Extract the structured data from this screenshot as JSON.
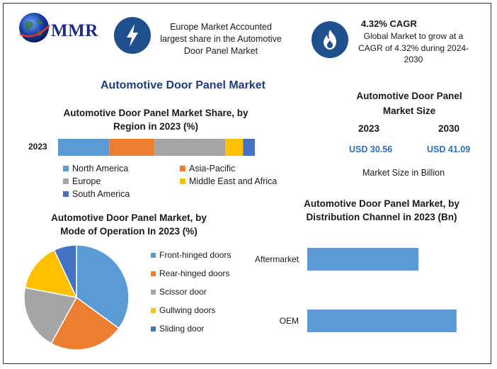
{
  "brand": {
    "name": "MMR"
  },
  "info1": {
    "line1": "Europe Market Accounted",
    "line2": "largest share in the Automotive",
    "line3": "Door Panel Market",
    "icon": "lightning-icon"
  },
  "info2": {
    "title": "4.32% CAGR",
    "line1": "Global Market to grow at a",
    "line2": "CAGR of 4.32% during 2024-",
    "line3": "2030",
    "icon": "flame-icon"
  },
  "main_title": "Automotive Door Panel Market",
  "size_panel": {
    "title_line1": "Automotive Door Panel",
    "title_line2": "Market Size",
    "year1": "2023",
    "year2": "2030",
    "value1": "USD 30.56",
    "value2": "USD 41.09",
    "note": "Market Size in Billion"
  },
  "chart_data": [
    {
      "type": "bar",
      "orientation": "horizontal-stacked",
      "title": "Automotive Door Panel Market Share, by Region in 2023 (%)",
      "title_line1": "Automotive Door Panel Market Share, by",
      "title_line2": "Region in 2023 (%)",
      "categories": [
        "2023"
      ],
      "series": [
        {
          "name": "North America",
          "values": [
            26
          ],
          "color": "#5b9bd5"
        },
        {
          "name": "Asia-Pacific",
          "values": [
            23
          ],
          "color": "#ed7d31"
        },
        {
          "name": "Europe",
          "values": [
            36
          ],
          "color": "#a5a5a5"
        },
        {
          "name": "Middle East and Africa",
          "values": [
            9
          ],
          "color": "#ffc000"
        },
        {
          "name": "South America",
          "values": [
            6
          ],
          "color": "#4472c4"
        }
      ]
    },
    {
      "type": "pie",
      "title": "Automotive Door Panel Market, by Mode of Operation In 2023 (%)",
      "title_line1": "Automotive Door Panel Market, by",
      "title_line2": "Mode of Operation In 2023 (%)",
      "slices": [
        {
          "name": "Front-hinged doors",
          "value": 35,
          "color": "#5b9bd5"
        },
        {
          "name": "Rear-hinged doors",
          "value": 23,
          "color": "#ed7d31"
        },
        {
          "name": "Scissor door",
          "value": 20,
          "color": "#a5a5a5"
        },
        {
          "name": "Gullwing doors",
          "value": 15,
          "color": "#ffc000"
        },
        {
          "name": "Sliding door",
          "value": 7,
          "color": "#4472c4"
        }
      ]
    },
    {
      "type": "bar",
      "orientation": "horizontal",
      "title": "Automotive Door Panel Market, by Distribution Channel in 2023 (Bn)",
      "title_line1": "Automotive Door Panel Market, by",
      "title_line2": "Distribution Channel in 2023 (Bn)",
      "categories": [
        "Aftermarket",
        "OEM"
      ],
      "values": [
        12.3,
        16.5
      ],
      "color": "#5b9bd5",
      "xlim": [
        0,
        18
      ]
    }
  ]
}
